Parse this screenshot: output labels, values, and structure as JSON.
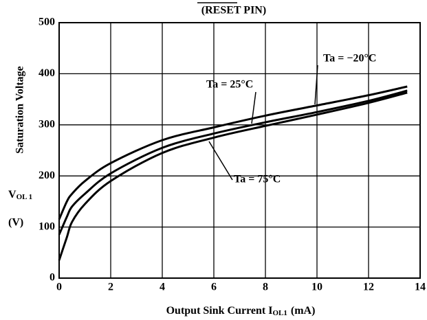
{
  "chart_data": {
    "type": "line",
    "title": "(RESET PIN)",
    "y_label": "Saturation Voltage",
    "y_symbol": "V",
    "y_symbol_sub": "OL 1",
    "y_unit": "(V)",
    "x_label": "Output Sink Current I",
    "x_label_sub": "OL1",
    "x_unit": "(mA)",
    "x": [
      0,
      0.3,
      0.5,
      1,
      2,
      4,
      6,
      8,
      10,
      12,
      13.5
    ],
    "series": [
      {
        "name": "Ta = −20°C",
        "color": "#000000",
        "values": [
          115,
          150,
          165,
          190,
          225,
          270,
          295,
          318,
          338,
          358,
          375
        ]
      },
      {
        "name": "Ta = 25°C",
        "color": "#000000",
        "values": [
          85,
          120,
          140,
          165,
          205,
          255,
          283,
          305,
          325,
          347,
          367
        ]
      },
      {
        "name": "Ta = 75°C",
        "color": "#000000",
        "values": [
          35,
          80,
          110,
          145,
          190,
          245,
          275,
          298,
          320,
          343,
          363
        ]
      }
    ],
    "xlim": [
      0,
      14
    ],
    "xticks": [
      0,
      2,
      4,
      6,
      8,
      10,
      12,
      14
    ],
    "ylim": [
      0,
      500
    ],
    "yticks": [
      0,
      100,
      200,
      300,
      400,
      500
    ],
    "grid": true
  }
}
